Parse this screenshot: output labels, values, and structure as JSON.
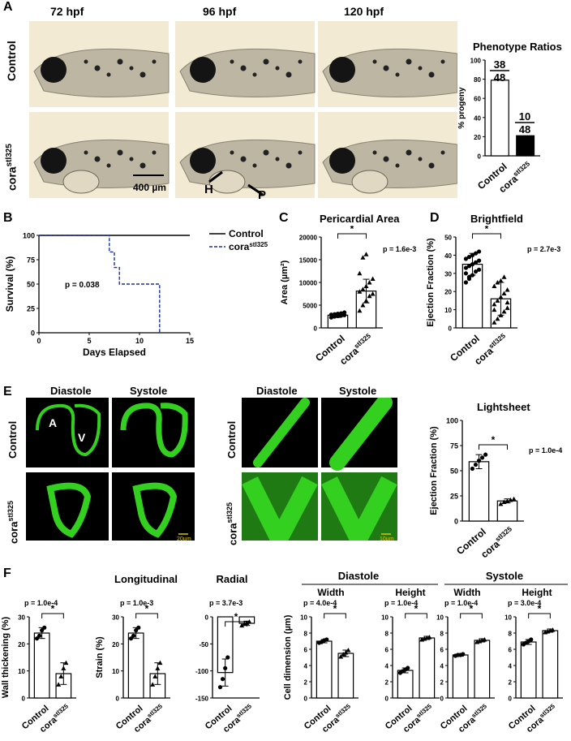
{
  "panel_letters": [
    "A",
    "B",
    "C",
    "D",
    "E",
    "F"
  ],
  "panelA": {
    "columns": [
      "72 hpf",
      "96 hpf",
      "120 hpf"
    ],
    "rows": [
      "Control",
      "cora"
    ],
    "row_sup": "stl325",
    "scale_bar": "400 µm",
    "arrow_labels": [
      "H",
      "P"
    ],
    "colors": {
      "photo_bg": "#f2ead2",
      "fish_body": "#bdb6a2",
      "eye": "#141414"
    }
  },
  "ratio_chart": {
    "title": "Phenotype Ratios",
    "ylabel": "% progeny",
    "fraction1": {
      "num": "38",
      "den": "48"
    },
    "fraction2": {
      "num": "10",
      "den": "48"
    }
  },
  "survival": {
    "ylabel": "Survival (%)",
    "xlabel": "Days Elapsed",
    "legend": [
      "Control",
      "cora"
    ],
    "legend_sup": "stl325",
    "pvalue": "p = 0.038"
  },
  "pericardial": {
    "title": "Pericardial Area",
    "ylabel": "Area (µm²)",
    "pvalue": "p = 1.6e-3",
    "star": "*"
  },
  "brightfield": {
    "title": "Brightfield",
    "ylabel": "Ejection Fraction (%)",
    "pvalue": "p = 2.7e-3",
    "star": "*"
  },
  "panelE": {
    "headers_left": [
      "Diastole",
      "Systole"
    ],
    "headers_right": [
      "Diastole",
      "Systole"
    ],
    "rows": [
      "Control",
      "cora"
    ],
    "row_sup": "stl325",
    "chamber_labels": [
      "A",
      "V"
    ],
    "scale_left": "20µm",
    "scale_right": "10µm",
    "colors": {
      "bg": "#000000",
      "fluor": "#33d020",
      "fluor_dim": "#1f7a14"
    }
  },
  "lightsheet": {
    "title": "Lightsheet",
    "ylabel": "Ejection Fraction (%)",
    "pvalue": "p = 1.0e-4",
    "star": "*"
  },
  "panelF": {
    "group_titles": [
      "Longitudinal",
      "Radial",
      "Diastole",
      "Systole"
    ],
    "sub_titles": [
      "Width",
      "Height",
      "Width",
      "Height"
    ],
    "ylabels": [
      "Wall thickening (%)",
      "Strain (%)",
      "Cell dimension (µm)"
    ],
    "pvalues": [
      "p = 1.0e-4",
      "p = 1.0e-3",
      "p = 3.7e-3",
      "p = 4.0e-4",
      "p = 1.0e-4",
      "p = 1.0e-4",
      "p = 3.0e-4"
    ],
    "star": "*"
  },
  "xtick_labels": {
    "control": "Control",
    "mutant": "cora",
    "mutant_sup": "stl325"
  },
  "chart_data": [
    {
      "type": "bar",
      "id": "ratios",
      "categories": [
        "Control",
        "cora stl325"
      ],
      "values": [
        79,
        21
      ],
      "ylim": [
        0,
        100
      ],
      "yticks": [
        0,
        20,
        40,
        60,
        80,
        100
      ],
      "fill": [
        "#ffffff",
        "#000000"
      ]
    },
    {
      "type": "line",
      "id": "survival",
      "series": [
        {
          "name": "Control",
          "x": [
            0,
            15
          ],
          "y": [
            100,
            100
          ],
          "style": "solid"
        },
        {
          "name": "cora stl325",
          "x": [
            0,
            7,
            7,
            7.5,
            7.5,
            8,
            8,
            9,
            9,
            12,
            12
          ],
          "y": [
            100,
            100,
            83,
            83,
            67,
            67,
            50,
            50,
            50,
            50,
            0
          ],
          "style": "dashed"
        }
      ],
      "xlim": [
        0,
        15
      ],
      "ylim": [
        0,
        100
      ],
      "xticks": [
        0,
        5,
        10,
        15
      ],
      "yticks": [
        0,
        25,
        50,
        75,
        100
      ]
    },
    {
      "type": "bar",
      "id": "pericardial",
      "categories": [
        "Control",
        "cora stl325"
      ],
      "values": [
        2800,
        8100
      ],
      "errors": [
        500,
        2600
      ],
      "ylim": [
        0,
        20000
      ],
      "yticks": [
        0,
        5000,
        10000,
        15000,
        20000
      ],
      "points": [
        [
          2300,
          2500,
          2600,
          2700,
          2800,
          2900,
          3000,
          3100,
          3200,
          3400
        ],
        [
          3800,
          5000,
          6000,
          7000,
          7500,
          8000,
          8500,
          9200,
          10000,
          10800,
          12000,
          15500,
          16200
        ]
      ]
    },
    {
      "type": "bar",
      "id": "brightfield",
      "categories": [
        "Control",
        "cora stl325"
      ],
      "values": [
        35,
        16
      ],
      "errors": [
        6,
        9
      ],
      "ylim": [
        0,
        50
      ],
      "yticks": [
        0,
        10,
        20,
        30,
        40,
        50
      ],
      "points": [
        [
          25,
          27,
          29,
          31,
          32,
          33,
          34,
          35,
          36,
          37,
          38,
          39,
          40,
          41,
          42,
          30,
          28
        ],
        [
          3,
          5,
          7,
          9,
          11,
          13,
          15,
          17,
          19,
          21,
          23,
          25,
          26,
          28,
          14,
          10
        ]
      ]
    },
    {
      "type": "bar",
      "id": "lightsheet",
      "categories": [
        "Control",
        "cora stl325"
      ],
      "values": [
        59,
        20
      ],
      "errors": [
        7,
        2
      ],
      "ylim": [
        0,
        100
      ],
      "yticks": [
        0,
        25,
        50,
        75,
        100
      ],
      "points": [
        [
          52,
          56,
          60,
          63,
          66
        ],
        [
          17,
          19,
          20,
          21,
          22
        ]
      ]
    },
    {
      "type": "bar",
      "id": "wall_thickening",
      "categories": [
        "Control",
        "cora stl325"
      ],
      "values": [
        24,
        9
      ],
      "errors": [
        2,
        4
      ],
      "ylim": [
        0,
        30
      ],
      "yticks": [
        0,
        10,
        20,
        30
      ],
      "points": [
        [
          22,
          23,
          25,
          26
        ],
        [
          5,
          8,
          11,
          13
        ]
      ]
    },
    {
      "type": "bar",
      "id": "longitudinal_strain",
      "categories": [
        "Control",
        "cora stl325"
      ],
      "values": [
        24,
        9
      ],
      "errors": [
        2,
        4
      ],
      "ylim": [
        0,
        30
      ],
      "yticks": [
        0,
        10,
        20,
        30
      ],
      "points": [
        [
          22,
          23,
          25,
          26
        ],
        [
          5,
          8,
          11,
          13
        ]
      ]
    },
    {
      "type": "bar",
      "id": "radial_strain",
      "categories": [
        "Control",
        "cora stl325"
      ],
      "values": [
        -103,
        -12
      ],
      "errors": [
        25,
        4
      ],
      "ylim": [
        -150,
        0
      ],
      "yticks": [
        -150,
        -100,
        -50,
        0
      ],
      "points": [
        [
          -130,
          -115,
          -95,
          -75
        ],
        [
          -16,
          -13,
          -11,
          -9
        ]
      ]
    },
    {
      "type": "bar",
      "id": "diastole_width",
      "categories": [
        "Control",
        "cora stl325"
      ],
      "values": [
        7.0,
        5.5
      ],
      "errors": [
        0.2,
        0.4
      ],
      "ylim": [
        0,
        10
      ],
      "yticks": [
        0,
        2,
        4,
        6,
        8,
        10
      ],
      "points": [
        [
          6.8,
          6.9,
          7.1,
          7.2
        ],
        [
          5.1,
          5.4,
          5.6,
          5.9
        ]
      ]
    },
    {
      "type": "bar",
      "id": "diastole_height",
      "categories": [
        "Control",
        "cora stl325"
      ],
      "values": [
        3.4,
        7.4
      ],
      "errors": [
        0.3,
        0.2
      ],
      "ylim": [
        0,
        10
      ],
      "yticks": [
        0,
        2,
        4,
        6,
        8,
        10
      ],
      "points": [
        [
          3.1,
          3.3,
          3.5,
          3.7
        ],
        [
          7.2,
          7.3,
          7.4,
          7.5
        ]
      ]
    },
    {
      "type": "bar",
      "id": "systole_width",
      "categories": [
        "Control",
        "cora stl325"
      ],
      "values": [
        5.3,
        7.1
      ],
      "errors": [
        0.15,
        0.2
      ],
      "ylim": [
        0,
        10
      ],
      "yticks": [
        0,
        2,
        4,
        6,
        8,
        10
      ],
      "points": [
        [
          5.2,
          5.3,
          5.3,
          5.4
        ],
        [
          6.9,
          7.0,
          7.1,
          7.2
        ]
      ]
    },
    {
      "type": "bar",
      "id": "systole_height",
      "categories": [
        "Control",
        "cora stl325"
      ],
      "values": [
        6.9,
        8.3
      ],
      "errors": [
        0.3,
        0.2
      ],
      "ylim": [
        0,
        10
      ],
      "yticks": [
        0,
        2,
        4,
        6,
        8,
        10
      ],
      "points": [
        [
          6.6,
          6.8,
          7.0,
          7.2
        ],
        [
          8.1,
          8.2,
          8.3,
          8.4
        ]
      ]
    }
  ]
}
